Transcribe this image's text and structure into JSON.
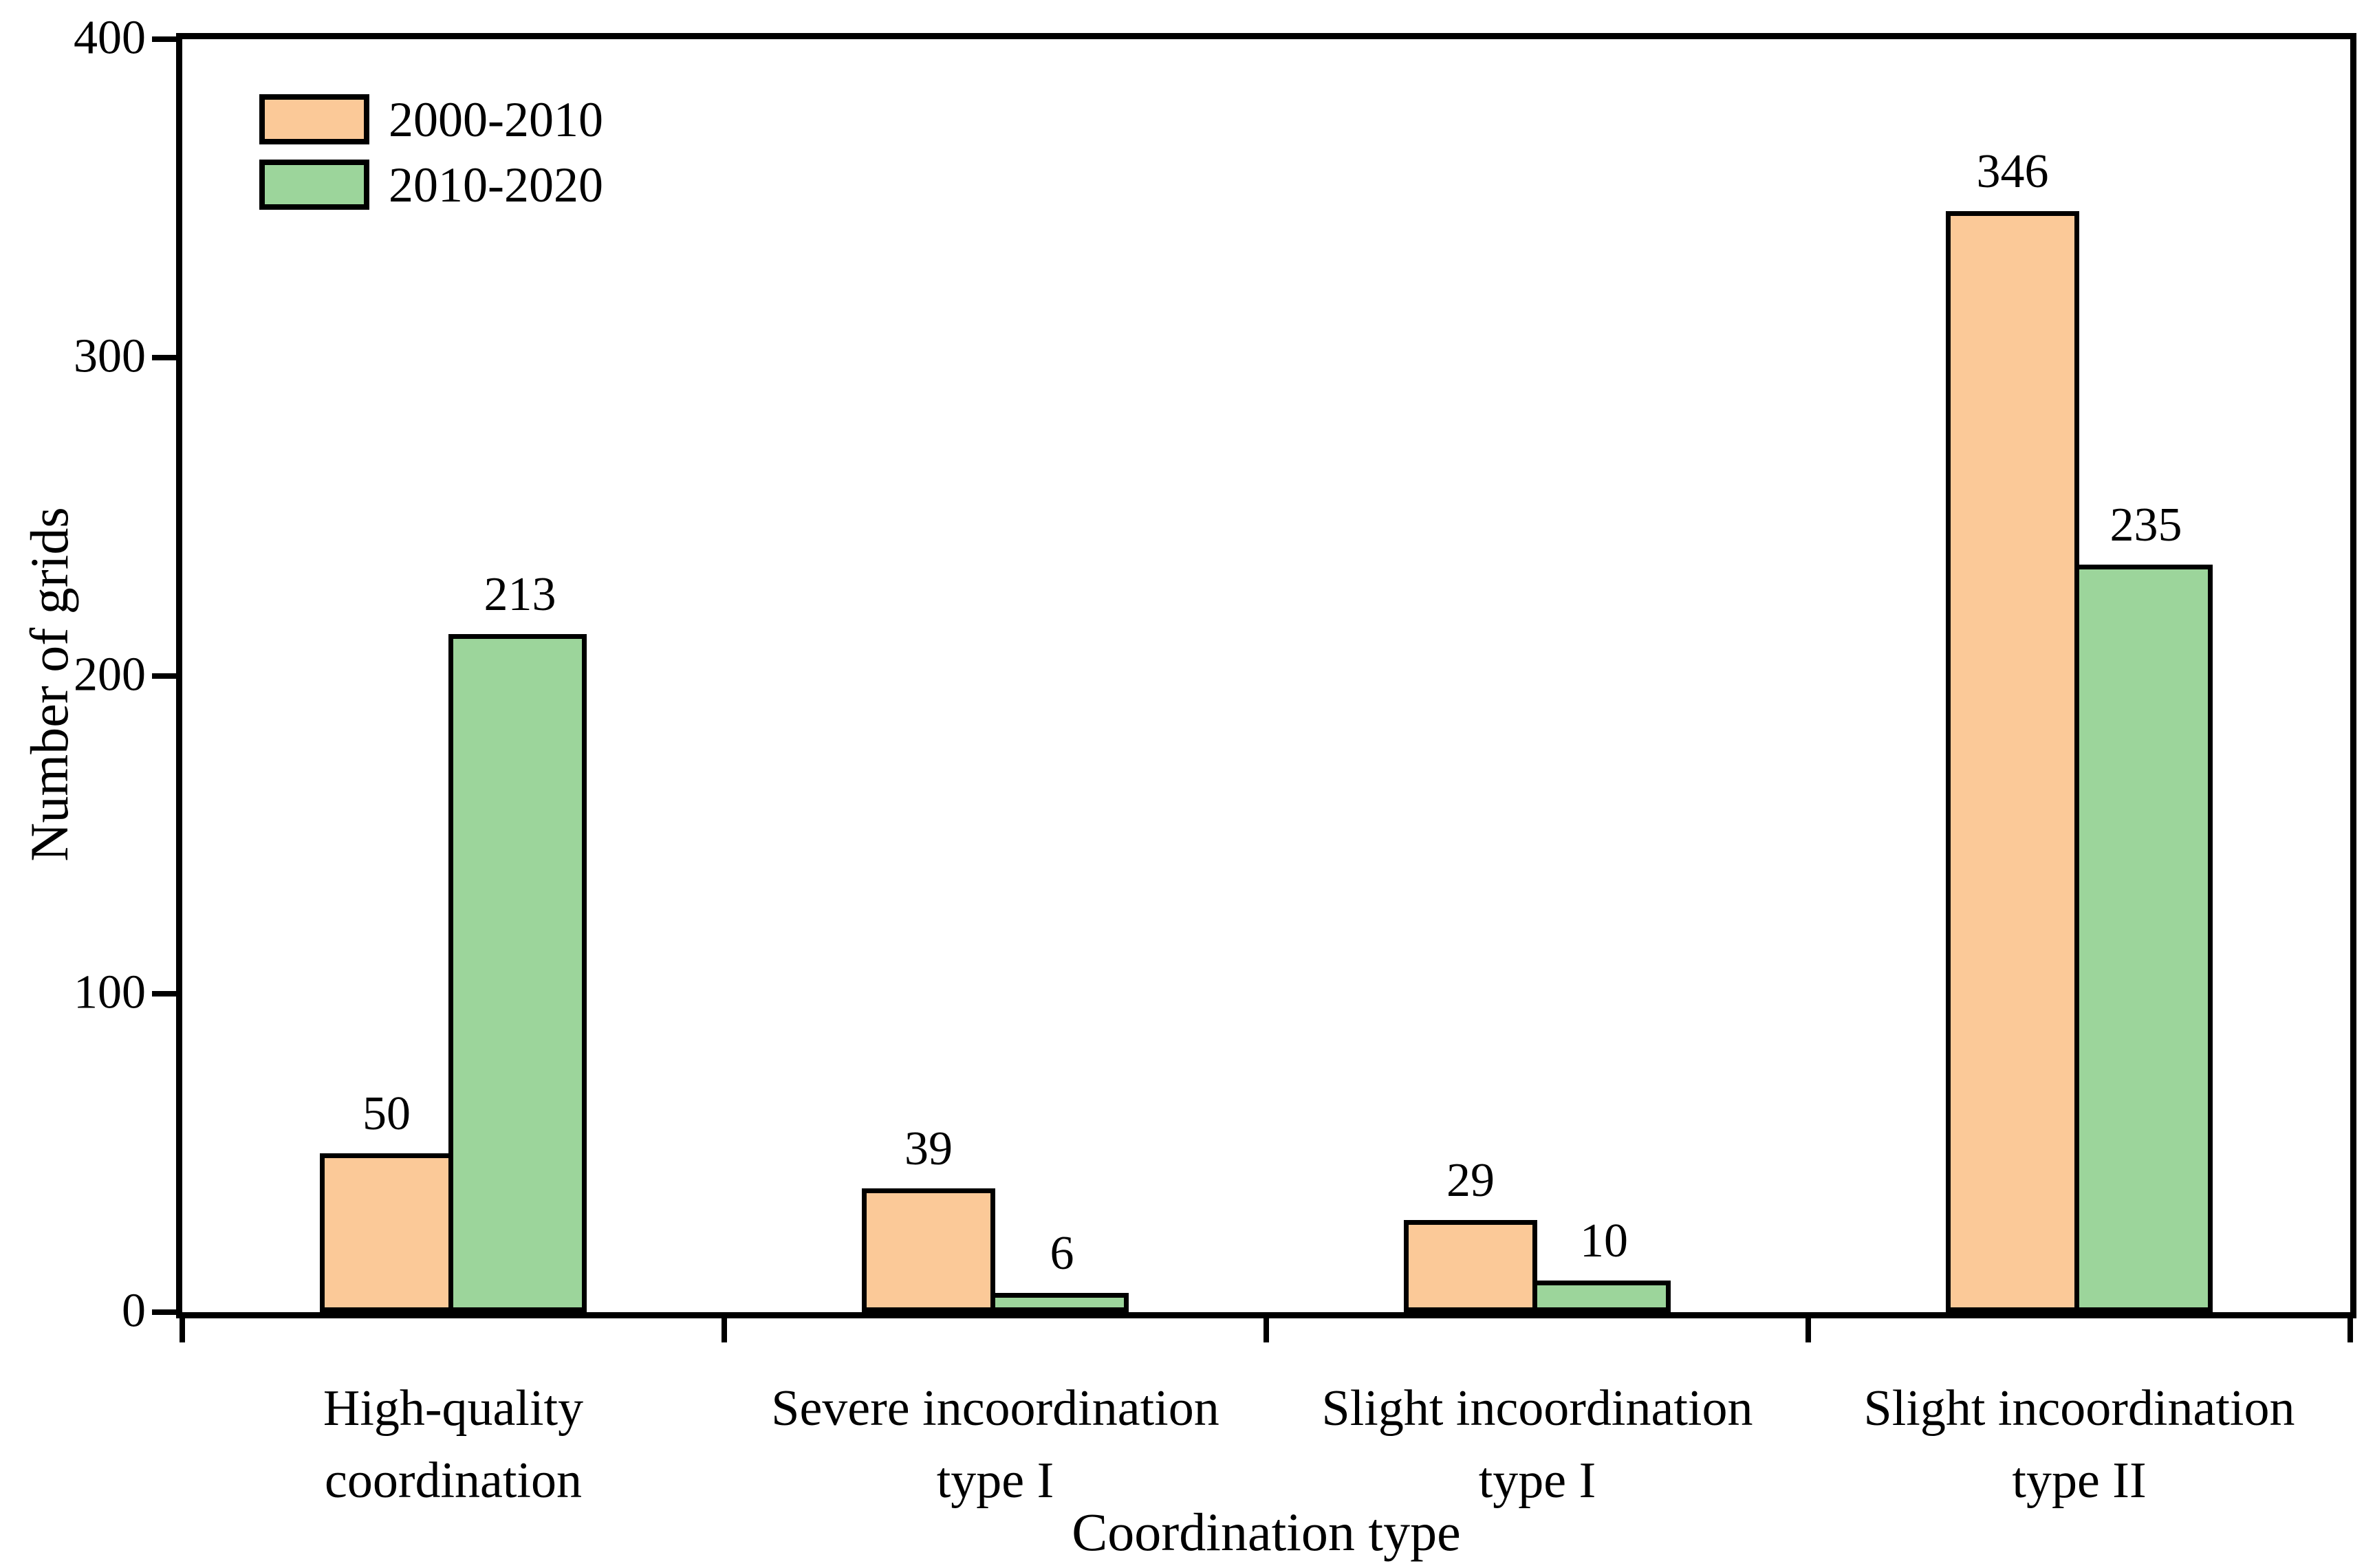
{
  "figure": {
    "background_color": "#ffffff",
    "frame_color": "#000000",
    "legend": {
      "position": "upper-left",
      "items": [
        {
          "label": "2000-2010",
          "color": "#FBC998"
        },
        {
          "label": "2010-2020",
          "color": "#9CD59B"
        }
      ]
    }
  },
  "chart_data": {
    "type": "bar",
    "title": "",
    "categories": [
      "High-quality\ncoordination",
      "Severe incoordination\ntype I",
      "Slight incoordination\ntype I",
      "Slight incoordination\ntype II"
    ],
    "series": [
      {
        "name": "2000-2010",
        "color": "#FBC998",
        "values": [
          50,
          39,
          29,
          346
        ]
      },
      {
        "name": "2010-2020",
        "color": "#9CD59B",
        "values": [
          213,
          6,
          10,
          235
        ]
      }
    ],
    "bar_value_labels": [
      [
        "50",
        "213"
      ],
      [
        "39",
        "6"
      ],
      [
        "29",
        "10"
      ],
      [
        "346",
        "235"
      ]
    ],
    "xlabel": "Coordination type",
    "ylabel": "Number of grids",
    "ylim": [
      0,
      400
    ],
    "yticks": [
      "0",
      "100",
      "200",
      "300",
      "400"
    ],
    "grid": false,
    "legend_position": "upper-left",
    "bar_outline_color": "#000000"
  }
}
